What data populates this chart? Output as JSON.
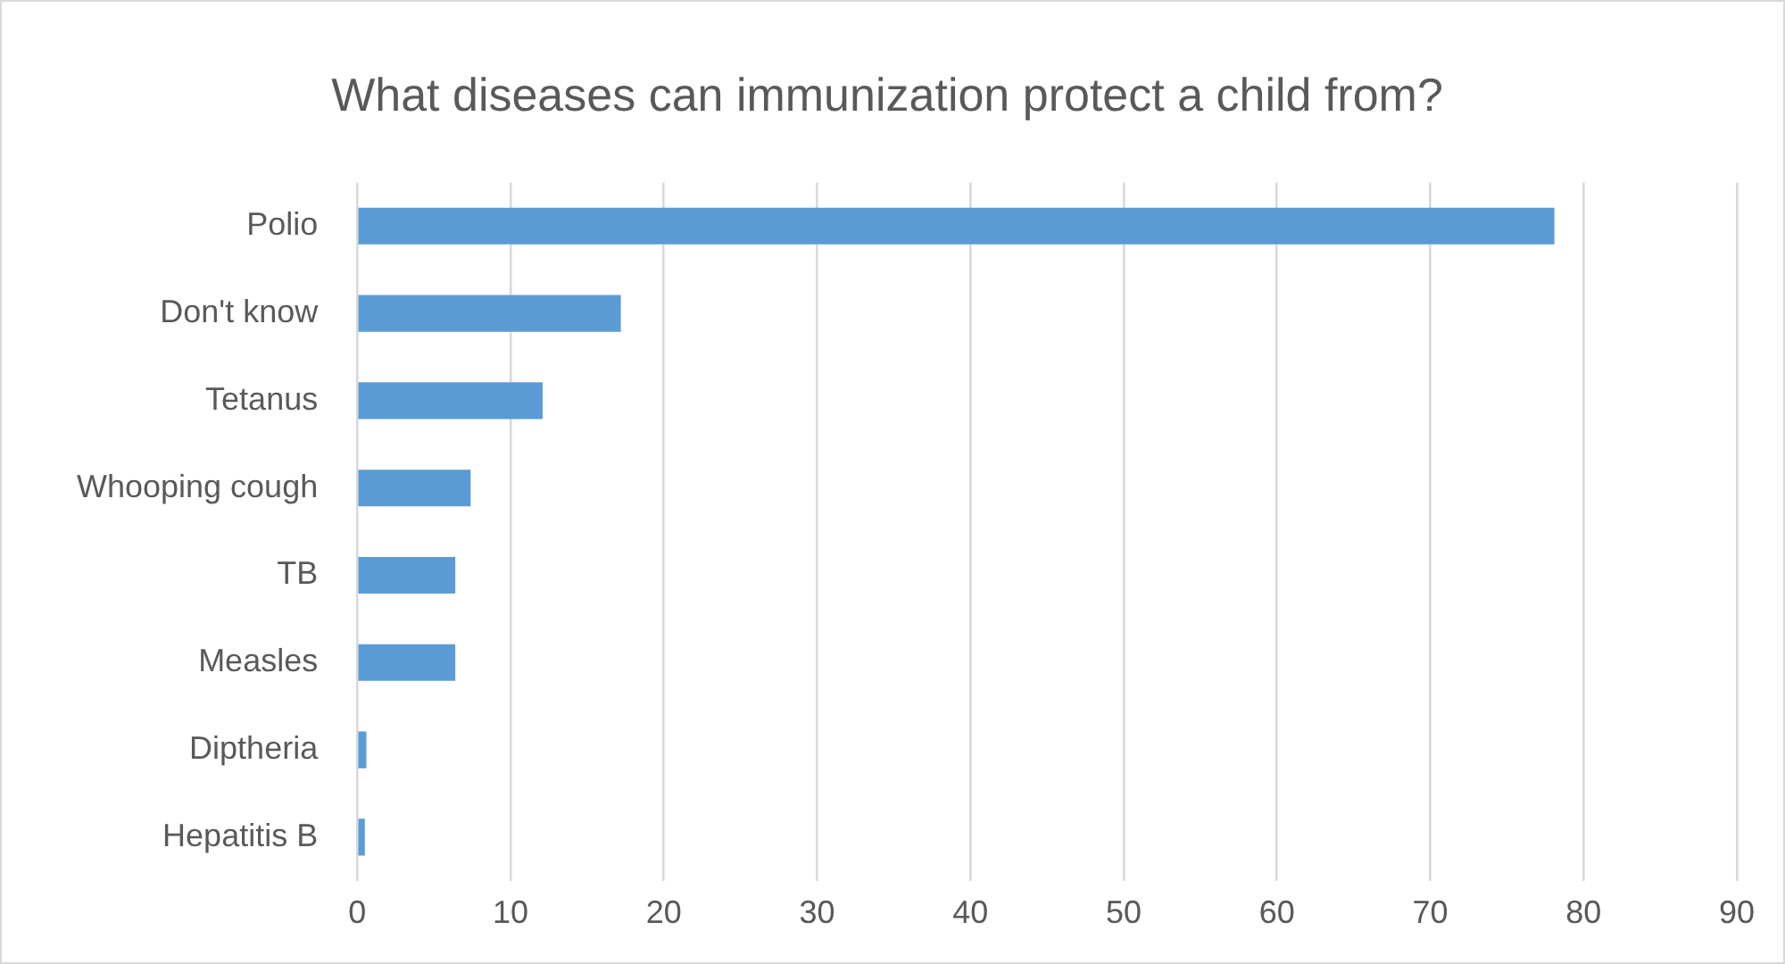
{
  "chart_data": {
    "type": "bar",
    "orientation": "horizontal",
    "title": "What diseases can immunization protect a child from?",
    "categories": [
      "Polio",
      "Don't know",
      "Tetanus",
      "Whooping cough",
      "TB",
      "Measles",
      "Diptheria",
      "Hepatitis B"
    ],
    "values": [
      78.1,
      17.2,
      12.1,
      7.4,
      6.4,
      6.4,
      0.6,
      0.5
    ],
    "color": "#5b9bd5",
    "xlim": [
      0,
      90
    ],
    "xticks": [
      0,
      10,
      20,
      30,
      40,
      50,
      60,
      70,
      80,
      90
    ],
    "grid": "x"
  }
}
